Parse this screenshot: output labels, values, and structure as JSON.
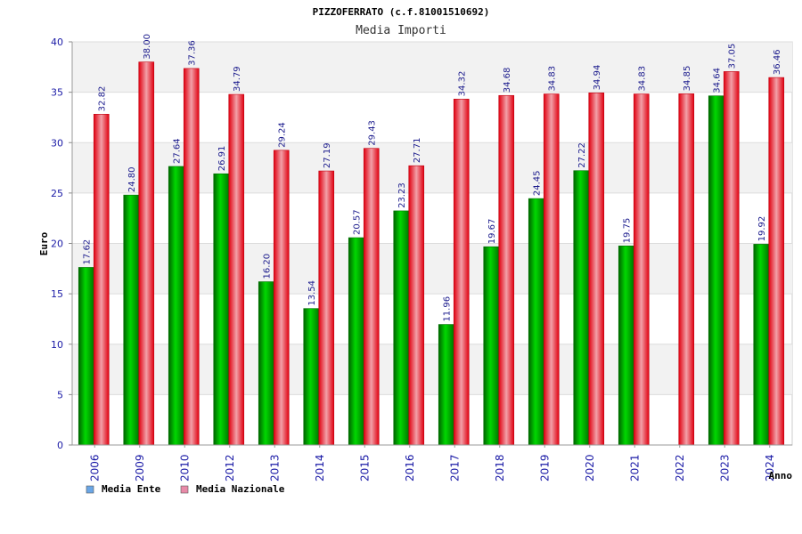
{
  "chart_data": {
    "type": "bar",
    "title": "PIZZOFERRATO (c.f.81001510692)",
    "subtitle": "Media Importi",
    "xlabel": "Anno",
    "ylabel": "Euro",
    "ylim": [
      0,
      40
    ],
    "yticks": [
      0,
      5,
      10,
      15,
      20,
      25,
      30,
      35,
      40
    ],
    "ytick_labels": [
      "0",
      "5",
      "10",
      "15",
      "20",
      "25",
      "30",
      "35",
      "40"
    ],
    "categories": [
      "2006",
      "2009",
      "2010",
      "2012",
      "2013",
      "2014",
      "2015",
      "2016",
      "2017",
      "2018",
      "2019",
      "2020",
      "2021",
      "2022",
      "2023",
      "2024"
    ],
    "series": [
      {
        "name": "Media Ente",
        "color": "#00b400",
        "legend_color": "#6aa6e6",
        "values": [
          17.62,
          24.8,
          27.64,
          26.91,
          16.2,
          13.54,
          20.57,
          23.23,
          11.96,
          19.67,
          24.45,
          27.22,
          19.75,
          null,
          34.64,
          19.92
        ],
        "labels": [
          "17.62",
          "24.80",
          "27.64",
          "26.91",
          "16.20",
          "13.54",
          "20.57",
          "23.23",
          "11.96",
          "19.67",
          "24.45",
          "27.22",
          "19.75",
          null,
          "34.64",
          "19.92"
        ]
      },
      {
        "name": "Media Nazionale",
        "color": "#e8101e",
        "legend_color": "#e88aa8",
        "values": [
          32.82,
          38.0,
          37.36,
          34.79,
          29.24,
          27.19,
          29.43,
          27.71,
          34.32,
          34.68,
          34.83,
          34.94,
          34.83,
          34.85,
          37.05,
          36.46
        ],
        "labels": [
          "32.82",
          "38.00",
          "37.36",
          "34.79",
          "29.24",
          "27.19",
          "29.43",
          "27.71",
          "34.32",
          "34.68",
          "34.83",
          "34.94",
          "34.83",
          "34.85",
          "37.05",
          "36.46"
        ]
      }
    ],
    "grid": true,
    "legend_position": "bottom-left"
  }
}
